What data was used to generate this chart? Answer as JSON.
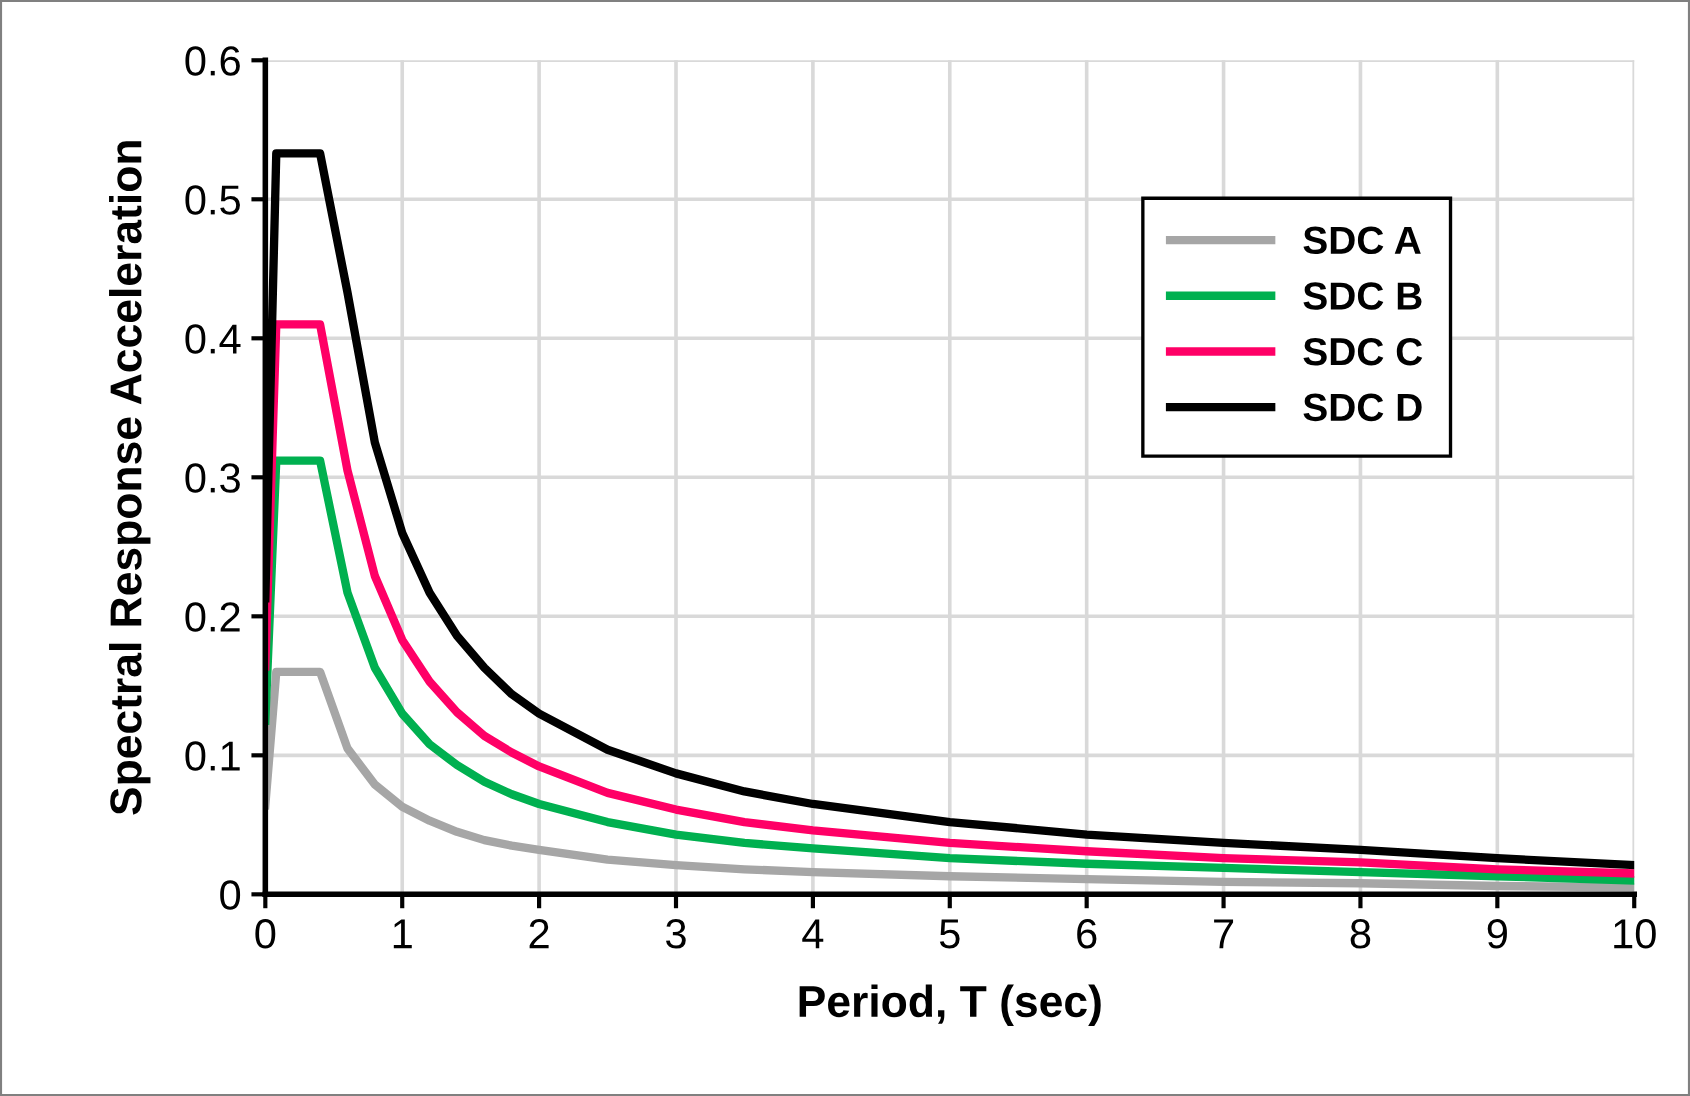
{
  "chart_data": {
    "type": "line",
    "xlabel": "Period, T (sec)",
    "ylabel": "Spectral Response Acceleration",
    "x": [
      0,
      0.08,
      0.4,
      0.6,
      0.8,
      1,
      1.2,
      1.4,
      1.6,
      1.8,
      2,
      2.5,
      3,
      3.5,
      4,
      5,
      6,
      7,
      8,
      9,
      10
    ],
    "series": [
      {
        "name": "SDC A",
        "color": "#a6a6a6",
        "values": [
          0.064,
          0.16,
          0.16,
          0.105,
          0.079,
          0.063,
          0.053,
          0.045,
          0.039,
          0.035,
          0.032,
          0.025,
          0.021,
          0.018,
          0.016,
          0.013,
          0.011,
          0.009,
          0.008,
          0.006,
          0.005
        ]
      },
      {
        "name": "SDC B",
        "color": "#00b050",
        "values": [
          0.125,
          0.312,
          0.312,
          0.217,
          0.163,
          0.13,
          0.108,
          0.093,
          0.081,
          0.072,
          0.065,
          0.052,
          0.043,
          0.037,
          0.033,
          0.026,
          0.022,
          0.019,
          0.016,
          0.013,
          0.01
        ]
      },
      {
        "name": "SDC C",
        "color": "#ff0066",
        "values": [
          0.164,
          0.41,
          0.41,
          0.305,
          0.229,
          0.183,
          0.153,
          0.131,
          0.114,
          0.102,
          0.092,
          0.073,
          0.061,
          0.052,
          0.046,
          0.037,
          0.031,
          0.026,
          0.023,
          0.018,
          0.015
        ]
      },
      {
        "name": "SDC D",
        "color": "#000000",
        "values": [
          0.213,
          0.533,
          0.533,
          0.433,
          0.325,
          0.26,
          0.217,
          0.186,
          0.163,
          0.144,
          0.13,
          0.104,
          0.087,
          0.074,
          0.065,
          0.052,
          0.043,
          0.037,
          0.032,
          0.026,
          0.021
        ]
      }
    ],
    "xlim": [
      0,
      10
    ],
    "xticks": [
      0,
      1,
      2,
      3,
      4,
      5,
      6,
      7,
      8,
      9,
      10
    ],
    "ylim": [
      0,
      0.6
    ],
    "yticks": [
      0,
      0.1,
      0.2,
      0.3,
      0.4,
      0.5,
      0.6
    ],
    "grid": true,
    "legend": "right",
    "marker": "none",
    "line_style": "solid"
  }
}
